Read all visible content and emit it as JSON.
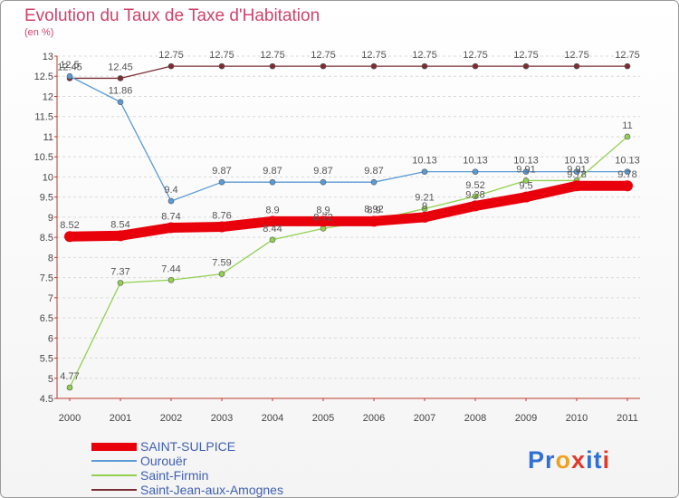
{
  "title": "Evolution du Taux de Taxe d'Habitation",
  "subtitle": "(en %)",
  "logo": {
    "text": "Proxiti",
    "letters": [
      {
        "char": "P",
        "color": "#2f6fd6"
      },
      {
        "char": "r",
        "color": "#2f6fd6"
      },
      {
        "char": "o",
        "color": "#f0a020"
      },
      {
        "char": "x",
        "color": "#e03a2a"
      },
      {
        "char": "i",
        "color": "#2f6fd6"
      },
      {
        "char": "t",
        "color": "#2f6fd6"
      },
      {
        "char": "i",
        "color": "#e03a2a"
      }
    ]
  },
  "chart_data": {
    "type": "line",
    "categories": [
      "2000",
      "2001",
      "2002",
      "2003",
      "2004",
      "2005",
      "2006",
      "2007",
      "2008",
      "2009",
      "2010",
      "2011"
    ],
    "ylim": [
      4.5,
      13
    ],
    "yticks": [
      4.5,
      5,
      5.5,
      6,
      6.5,
      7,
      7.5,
      8,
      8.5,
      9,
      9.5,
      10,
      10.5,
      11,
      11.5,
      12,
      12.5,
      13
    ],
    "grid": "dashed horizontal",
    "legend_position": "bottom-left",
    "series": [
      {
        "name": "SAINT-SULPICE",
        "color": "#e8000b",
        "values": [
          8.52,
          8.54,
          8.74,
          8.76,
          8.9,
          8.9,
          8.9,
          9.0,
          9.28,
          9.5,
          9.78,
          9.78
        ],
        "labels": [
          "8.52",
          "8.54",
          "8.74",
          "8.76",
          "8.9",
          "8.9",
          "8.9",
          "9",
          "9.28",
          "9.5",
          "9.78",
          "9.78"
        ]
      },
      {
        "name": "Ourouër",
        "color": "#5b9bd5",
        "values": [
          12.5,
          11.86,
          9.4,
          9.87,
          9.87,
          9.87,
          9.87,
          10.13,
          10.13,
          10.13,
          10.13,
          10.13
        ],
        "labels": [
          "12.5",
          "11.86",
          "9.4",
          "9.87",
          "9.87",
          "9.87",
          "9.87",
          "10.13",
          "10.13",
          "10.13",
          "10.13",
          "10.13"
        ]
      },
      {
        "name": "Saint-Firmin",
        "color": "#92d050",
        "values": [
          4.77,
          7.37,
          7.44,
          7.59,
          8.44,
          8.72,
          8.92,
          9.21,
          9.52,
          9.91,
          9.91,
          11
        ],
        "labels": [
          "4.77",
          "7.37",
          "7.44",
          "7.59",
          "8.44",
          "8.72",
          "8.92",
          "9.21",
          "9.52",
          "9.91",
          "9.91",
          "11"
        ]
      },
      {
        "name": "Saint-Jean-aux-Amognes",
        "color": "#7a2e34",
        "values": [
          12.45,
          12.45,
          12.75,
          12.75,
          12.75,
          12.75,
          12.75,
          12.75,
          12.75,
          12.75,
          12.75,
          12.75
        ],
        "labels": [
          "12.45",
          "12.45",
          "12.75",
          "12.75",
          "12.75",
          "12.75",
          "12.75",
          "12.75",
          "12.75",
          "12.75",
          "12.75",
          "12.75"
        ]
      }
    ]
  }
}
